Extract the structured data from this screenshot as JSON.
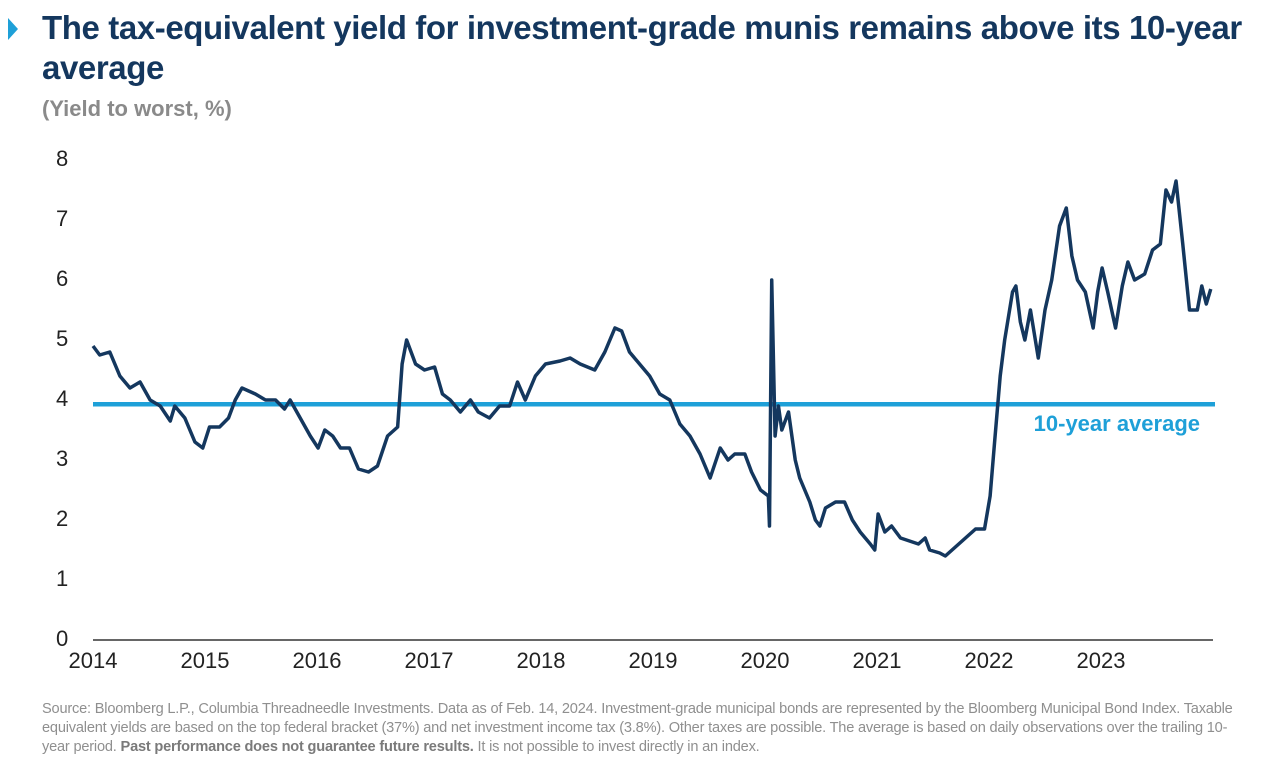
{
  "chart_data": {
    "type": "line",
    "title": "The tax-equivalent yield for investment-grade munis remains above its 10-year average",
    "subtitle": "(Yield to worst, %)",
    "x": [
      2014.0,
      2014.06,
      2014.15,
      2014.24,
      2014.33,
      2014.42,
      2014.51,
      2014.6,
      2014.69,
      2014.73,
      2014.82,
      2014.91,
      2014.98,
      2015.04,
      2015.13,
      2015.21,
      2015.27,
      2015.33,
      2015.45,
      2015.54,
      2015.63,
      2015.71,
      2015.76,
      2015.85,
      2015.94,
      2016.01,
      2016.07,
      2016.14,
      2016.21,
      2016.29,
      2016.37,
      2016.46,
      2016.54,
      2016.63,
      2016.72,
      2016.76,
      2016.8,
      2016.88,
      2016.96,
      2017.05,
      2017.12,
      2017.19,
      2017.28,
      2017.37,
      2017.44,
      2017.54,
      2017.63,
      2017.72,
      2017.79,
      2017.86,
      2017.95,
      2018.04,
      2018.17,
      2018.26,
      2018.35,
      2018.48,
      2018.57,
      2018.66,
      2018.72,
      2018.79,
      2018.88,
      2018.97,
      2019.06,
      2019.15,
      2019.24,
      2019.33,
      2019.42,
      2019.51,
      2019.6,
      2019.67,
      2019.73,
      2019.82,
      2019.88,
      2019.96,
      2020.03,
      2020.04,
      2020.06,
      2020.09,
      2020.12,
      2020.15,
      2020.21,
      2020.27,
      2020.31,
      2020.4,
      2020.45,
      2020.49,
      2020.54,
      2020.63,
      2020.71,
      2020.78,
      2020.85,
      2020.94,
      2020.98,
      2021.01,
      2021.07,
      2021.13,
      2021.21,
      2021.29,
      2021.37,
      2021.43,
      2021.47,
      2021.56,
      2021.61,
      2021.7,
      2021.79,
      2021.88,
      2021.96,
      2022.01,
      2022.05,
      2022.1,
      2022.14,
      2022.21,
      2022.24,
      2022.28,
      2022.32,
      2022.37,
      2022.44,
      2022.5,
      2022.56,
      2022.63,
      2022.69,
      2022.74,
      2022.79,
      2022.86,
      2022.93,
      2022.97,
      2023.01,
      2023.06,
      2023.13,
      2023.19,
      2023.24,
      2023.3,
      2023.39,
      2023.46,
      2023.53,
      2023.58,
      2023.63,
      2023.67,
      2023.73,
      2023.79,
      2023.86,
      2023.9,
      2023.94,
      2023.98
    ],
    "series": [
      {
        "name": "Tax-equivalent yield",
        "color": "#14375e",
        "values": [
          4.9,
          4.75,
          4.8,
          4.4,
          4.2,
          4.3,
          4.0,
          3.9,
          3.65,
          3.9,
          3.7,
          3.3,
          3.2,
          3.55,
          3.55,
          3.7,
          4.0,
          4.2,
          4.1,
          4.0,
          4.0,
          3.85,
          4.0,
          3.7,
          3.4,
          3.2,
          3.5,
          3.4,
          3.2,
          3.2,
          2.85,
          2.8,
          2.9,
          3.4,
          3.55,
          4.6,
          5.0,
          4.6,
          4.5,
          4.55,
          4.1,
          4.0,
          3.8,
          4.0,
          3.8,
          3.7,
          3.9,
          3.9,
          4.3,
          4.0,
          4.4,
          4.6,
          4.65,
          4.7,
          4.6,
          4.5,
          4.8,
          5.2,
          5.15,
          4.8,
          4.6,
          4.4,
          4.1,
          4.0,
          3.6,
          3.4,
          3.1,
          2.7,
          3.2,
          3.0,
          3.1,
          3.1,
          2.8,
          2.5,
          2.4,
          1.9,
          6.0,
          3.4,
          3.9,
          3.5,
          3.8,
          3.0,
          2.7,
          2.3,
          2.0,
          1.9,
          2.2,
          2.3,
          2.3,
          2.0,
          1.8,
          1.6,
          1.5,
          2.1,
          1.8,
          1.9,
          1.7,
          1.65,
          1.6,
          1.7,
          1.5,
          1.45,
          1.4,
          1.55,
          1.7,
          1.85,
          1.85,
          2.4,
          3.3,
          4.4,
          5.0,
          5.8,
          5.9,
          5.3,
          5.0,
          5.5,
          4.7,
          5.5,
          6.0,
          6.9,
          7.2,
          6.4,
          6.0,
          5.8,
          5.2,
          5.8,
          6.2,
          5.8,
          5.2,
          5.9,
          6.3,
          6.0,
          6.1,
          6.5,
          6.6,
          7.5,
          7.3,
          7.65,
          6.6,
          5.5,
          5.5,
          5.9,
          5.6,
          5.85
        ]
      }
    ],
    "xlim": [
      2014,
      2024
    ],
    "xticks": [
      2014,
      2015,
      2016,
      2017,
      2018,
      2019,
      2020,
      2021,
      2022,
      2023
    ],
    "ylim": [
      0,
      8
    ],
    "yticks": [
      0,
      1,
      2,
      3,
      4,
      5,
      6,
      7,
      8
    ],
    "reference_line": {
      "value": 3.93,
      "label": "10-year average",
      "color": "#1ea0d8"
    },
    "source": [
      "Source: Bloomberg L.P., Columbia Threadneedle Investments. Data as of Feb. 14, 2024. Investment-grade municipal bonds are represented by the Bloomberg Municipal Bond Index. Taxable equivalent yields are based on the top federal bracket (37%) and net investment income tax (3.8%). Other taxes are possible. The average is based on daily observations over the trailing 10-year period.",
      "Past performance does not guarantee future results.",
      "It is not possible to invest directly in an index."
    ]
  }
}
